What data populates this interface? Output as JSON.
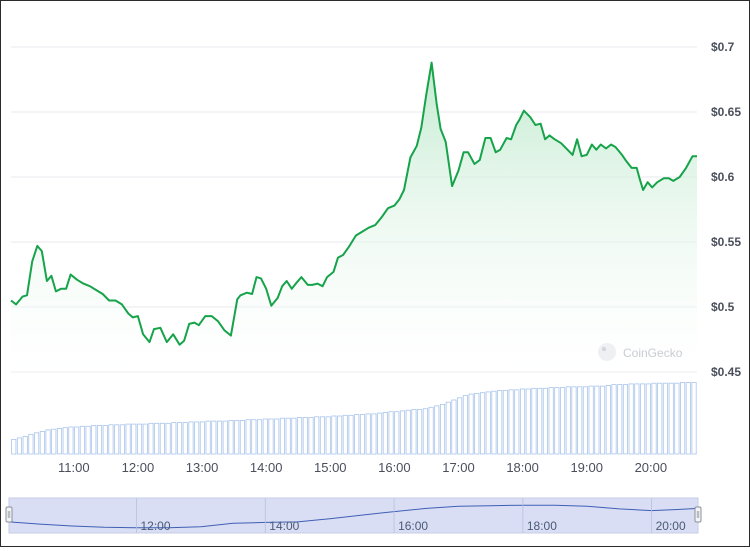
{
  "chart_data": {
    "type": "area",
    "title": "",
    "xlabel": "",
    "ylabel": "",
    "y_ticks": [
      "$0.7",
      "$0.65",
      "$0.6",
      "$0.55",
      "$0.5",
      "$0.45"
    ],
    "y_tick_values": [
      0.7,
      0.65,
      0.6,
      0.55,
      0.5,
      0.45
    ],
    "ylim": [
      0.445,
      0.713
    ],
    "x_ticks": [
      "11:00",
      "12:00",
      "13:00",
      "14:00",
      "15:00",
      "16:00",
      "17:00",
      "18:00",
      "19:00",
      "20:00"
    ],
    "x_tick_hours": [
      11,
      12,
      13,
      14,
      15,
      16,
      17,
      18,
      19,
      20
    ],
    "xlim_hours": [
      10.02,
      20.72
    ],
    "grid": true,
    "colors": {
      "line": "#16a34a",
      "fill_top": "#bfe9cd",
      "volume_bar": "#a9c4ec",
      "navigator_fill": "#d9def4",
      "navigator_line": "#3f5fb5"
    },
    "price_series": {
      "name": "",
      "t": [
        10.02,
        10.1,
        10.2,
        10.27,
        10.35,
        10.43,
        10.5,
        10.58,
        10.65,
        10.72,
        10.8,
        10.88,
        10.95,
        11.05,
        11.15,
        11.25,
        11.35,
        11.45,
        11.55,
        11.65,
        11.75,
        11.85,
        11.92,
        12.0,
        12.08,
        12.18,
        12.25,
        12.35,
        12.45,
        12.55,
        12.65,
        12.72,
        12.8,
        12.88,
        12.95,
        13.05,
        13.15,
        13.25,
        13.35,
        13.45,
        13.55,
        13.6,
        13.7,
        13.78,
        13.85,
        13.92,
        14.0,
        14.08,
        14.18,
        14.25,
        14.32,
        14.4,
        14.48,
        14.55,
        14.65,
        14.72,
        14.8,
        14.88,
        14.95,
        15.05,
        15.12,
        15.2,
        15.3,
        15.4,
        15.5,
        15.6,
        15.7,
        15.8,
        15.9,
        16.0,
        16.08,
        16.15,
        16.25,
        16.35,
        16.42,
        16.5,
        16.58,
        16.66,
        16.72,
        16.8,
        16.9,
        17.0,
        17.08,
        17.15,
        17.25,
        17.33,
        17.42,
        17.5,
        17.58,
        17.65,
        17.75,
        17.82,
        17.9,
        17.95,
        18.02,
        18.12,
        18.2,
        18.28,
        18.35,
        18.42,
        18.5,
        18.6,
        18.7,
        18.78,
        18.85,
        18.92,
        19.0,
        19.08,
        19.15,
        19.22,
        19.3,
        19.38,
        19.45,
        19.55,
        19.62,
        19.7,
        19.78,
        19.83,
        19.88,
        19.95,
        20.02,
        20.1,
        20.2,
        20.28,
        20.35,
        20.45,
        20.55,
        20.65,
        20.72
      ],
      "values": [
        0.505,
        0.502,
        0.508,
        0.509,
        0.535,
        0.547,
        0.543,
        0.52,
        0.524,
        0.512,
        0.514,
        0.514,
        0.525,
        0.521,
        0.518,
        0.516,
        0.513,
        0.51,
        0.505,
        0.505,
        0.502,
        0.495,
        0.492,
        0.493,
        0.479,
        0.473,
        0.483,
        0.484,
        0.473,
        0.479,
        0.471,
        0.474,
        0.487,
        0.488,
        0.486,
        0.493,
        0.493,
        0.489,
        0.482,
        0.478,
        0.506,
        0.509,
        0.511,
        0.51,
        0.523,
        0.522,
        0.514,
        0.501,
        0.507,
        0.516,
        0.52,
        0.514,
        0.519,
        0.523,
        0.517,
        0.517,
        0.518,
        0.516,
        0.523,
        0.527,
        0.538,
        0.54,
        0.547,
        0.555,
        0.558,
        0.561,
        0.563,
        0.569,
        0.576,
        0.578,
        0.583,
        0.59,
        0.615,
        0.624,
        0.638,
        0.664,
        0.688,
        0.656,
        0.637,
        0.627,
        0.593,
        0.605,
        0.619,
        0.619,
        0.61,
        0.613,
        0.63,
        0.63,
        0.619,
        0.621,
        0.63,
        0.629,
        0.64,
        0.644,
        0.651,
        0.646,
        0.64,
        0.641,
        0.629,
        0.632,
        0.629,
        0.626,
        0.621,
        0.617,
        0.629,
        0.616,
        0.617,
        0.625,
        0.621,
        0.625,
        0.622,
        0.625,
        0.623,
        0.617,
        0.612,
        0.607,
        0.607,
        0.598,
        0.59,
        0.596,
        0.592,
        0.596,
        0.599,
        0.599,
        0.597,
        0.6,
        0.607,
        0.616,
        0.616
      ]
    },
    "volume_series": {
      "name": "",
      "count": 120,
      "values_relative": [
        0.2,
        0.22,
        0.24,
        0.27,
        0.29,
        0.31,
        0.33,
        0.34,
        0.35,
        0.36,
        0.37,
        0.37,
        0.38,
        0.38,
        0.39,
        0.39,
        0.39,
        0.4,
        0.4,
        0.4,
        0.41,
        0.41,
        0.41,
        0.41,
        0.42,
        0.42,
        0.42,
        0.42,
        0.43,
        0.43,
        0.43,
        0.44,
        0.44,
        0.44,
        0.45,
        0.45,
        0.45,
        0.45,
        0.46,
        0.46,
        0.46,
        0.47,
        0.47,
        0.47,
        0.48,
        0.48,
        0.48,
        0.49,
        0.49,
        0.49,
        0.5,
        0.5,
        0.5,
        0.51,
        0.51,
        0.51,
        0.52,
        0.52,
        0.53,
        0.53,
        0.54,
        0.54,
        0.55,
        0.55,
        0.56,
        0.57,
        0.58,
        0.58,
        0.59,
        0.6,
        0.61,
        0.61,
        0.62,
        0.64,
        0.66,
        0.68,
        0.71,
        0.74,
        0.77,
        0.8,
        0.82,
        0.83,
        0.84,
        0.85,
        0.86,
        0.87,
        0.87,
        0.88,
        0.88,
        0.89,
        0.89,
        0.9,
        0.9,
        0.9,
        0.91,
        0.91,
        0.91,
        0.92,
        0.92,
        0.92,
        0.92,
        0.93,
        0.93,
        0.93,
        0.94,
        0.95,
        0.95,
        0.95,
        0.96,
        0.96,
        0.96,
        0.96,
        0.97,
        0.97,
        0.97,
        0.97,
        0.97,
        0.98,
        0.98,
        0.98
      ]
    },
    "navigator": {
      "x_ticks": [
        "12:00",
        "14:00",
        "16:00",
        "18:00",
        "20:00"
      ],
      "x_tick_hours": [
        12,
        14,
        16,
        18,
        20
      ],
      "curve_t": [
        10.02,
        10.5,
        11.0,
        11.5,
        12.0,
        12.5,
        13.0,
        13.5,
        14.0,
        14.5,
        15.0,
        15.5,
        16.0,
        16.5,
        17.0,
        17.5,
        18.0,
        18.5,
        19.0,
        19.5,
        20.0,
        20.4,
        20.72
      ],
      "curve_relative": [
        0.3,
        0.22,
        0.15,
        0.1,
        0.08,
        0.08,
        0.12,
        0.25,
        0.28,
        0.3,
        0.42,
        0.55,
        0.68,
        0.8,
        0.88,
        0.9,
        0.92,
        0.92,
        0.88,
        0.78,
        0.72,
        0.76,
        0.8
      ]
    },
    "watermark": "CoinGecko"
  }
}
